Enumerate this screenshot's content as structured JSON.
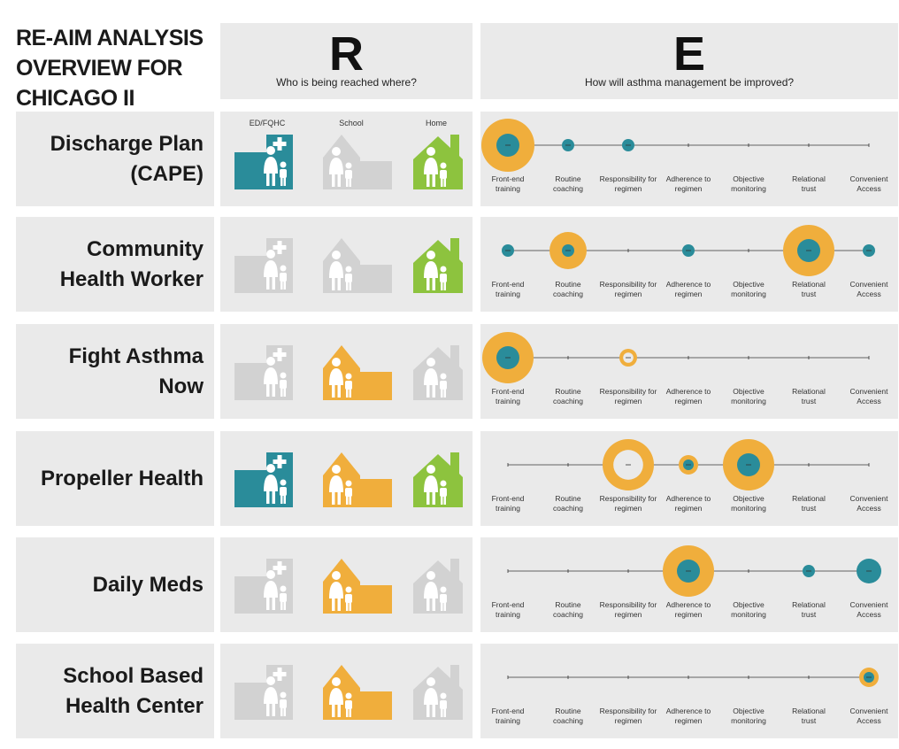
{
  "title": "RE-AIM ANALYSIS\nOVERVIEW FOR\nCHICAGO II",
  "reach_header": {
    "letter": "R",
    "question": "Who is being reached where?"
  },
  "effect_header": {
    "letter": "E",
    "question": "How will asthma management be improved?"
  },
  "locations": [
    "ED/FQHC",
    "School",
    "Home"
  ],
  "factors": [
    [
      "Front-end",
      "training"
    ],
    [
      "Routine",
      "coaching"
    ],
    [
      "Responsibility for",
      "regimen"
    ],
    [
      "Adherence to",
      "regimen"
    ],
    [
      "Objective",
      "monitoring"
    ],
    [
      "Relational",
      "trust"
    ],
    [
      "Convenient",
      "Access"
    ]
  ],
  "colors": {
    "clinic": "#2a8c9a",
    "school": "#f0ae3c",
    "home": "#8dc33e",
    "inactive": "#d2d2d2",
    "dot": "#2a8c9a",
    "ring": "#f0ae3c",
    "panel": "#eaeaea"
  },
  "programs": [
    {
      "name": "Discharge Plan\n(CAPE)",
      "reach": {
        "clinic": true,
        "school": false,
        "home": true
      },
      "effects": [
        {
          "factor": 0,
          "outer": 30,
          "inner": 13
        },
        {
          "factor": 1,
          "outer": 0,
          "inner": 7
        },
        {
          "factor": 2,
          "outer": 0,
          "inner": 7
        }
      ]
    },
    {
      "name": "Community\nHealth Worker",
      "reach": {
        "clinic": false,
        "school": false,
        "home": true
      },
      "effects": [
        {
          "factor": 0,
          "outer": 0,
          "inner": 7
        },
        {
          "factor": 1,
          "outer": 21,
          "inner": 7
        },
        {
          "factor": 3,
          "outer": 0,
          "inner": 7
        },
        {
          "factor": 5,
          "outer": 29,
          "inner": 13
        },
        {
          "factor": 6,
          "outer": 0,
          "inner": 7
        }
      ]
    },
    {
      "name": "Fight Asthma\nNow",
      "reach": {
        "clinic": false,
        "school": true,
        "home": false
      },
      "effects": [
        {
          "factor": 0,
          "outer": 29,
          "inner": 13
        },
        {
          "factor": 2,
          "outer": 10,
          "inner": 0
        }
      ]
    },
    {
      "name": "Propeller Health",
      "reach": {
        "clinic": true,
        "school": true,
        "home": true
      },
      "effects": [
        {
          "factor": 2,
          "outer": 29,
          "inner": 0
        },
        {
          "factor": 3,
          "outer": 11,
          "inner": 6
        },
        {
          "factor": 4,
          "outer": 29,
          "inner": 13
        }
      ]
    },
    {
      "name": "Daily Meds",
      "reach": {
        "clinic": false,
        "school": true,
        "home": false
      },
      "effects": [
        {
          "factor": 3,
          "outer": 29,
          "inner": 13
        },
        {
          "factor": 5,
          "outer": 0,
          "inner": 7
        },
        {
          "factor": 6,
          "outer": 0,
          "inner": 14
        }
      ]
    },
    {
      "name": "School Based\nHealth Center",
      "reach": {
        "clinic": false,
        "school": true,
        "home": false
      },
      "effects": [
        {
          "factor": 6,
          "outer": 11,
          "inner": 6
        }
      ]
    }
  ]
}
